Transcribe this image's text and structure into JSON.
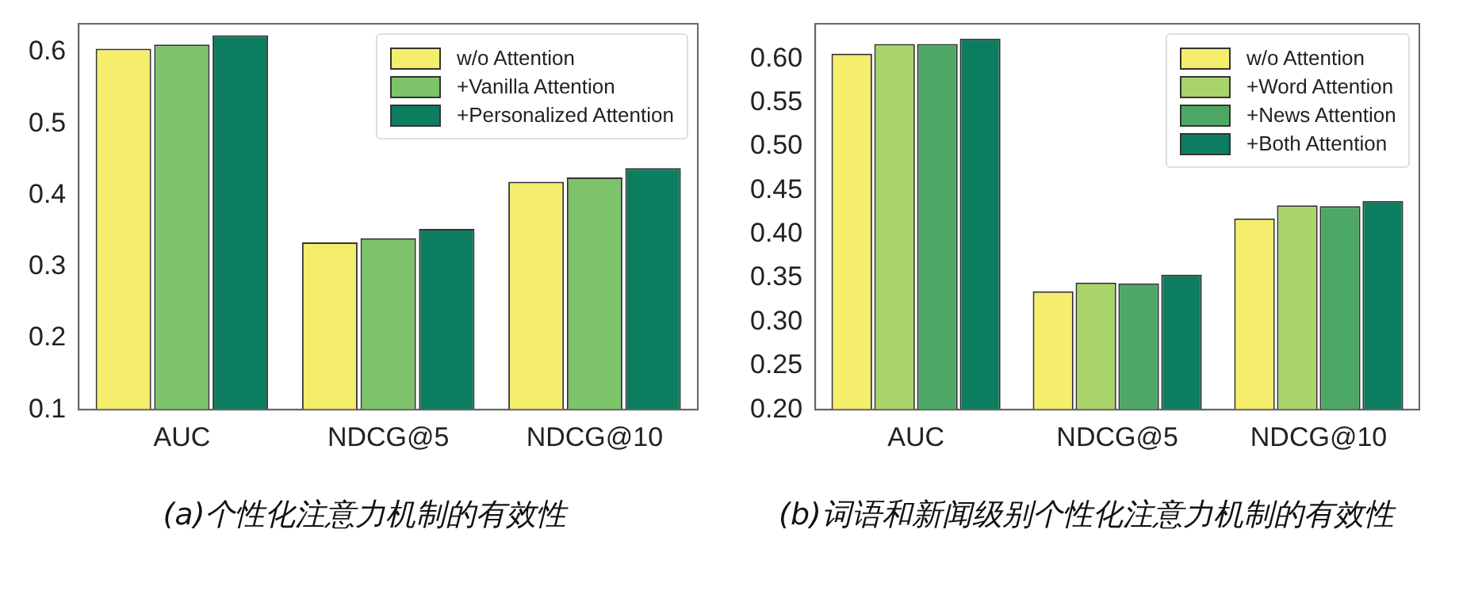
{
  "chart_data": [
    {
      "type": "bar",
      "categories": [
        "AUC",
        "NDCG@5",
        "NDCG@10"
      ],
      "series": [
        {
          "name": "w/o Attention",
          "color": "#f4ee6c",
          "values": [
            0.605,
            0.334,
            0.419
          ]
        },
        {
          "name": "+Vanilla Attention",
          "color": "#7cc36a",
          "values": [
            0.611,
            0.34,
            0.425
          ]
        },
        {
          "name": "+Personalized Attention",
          "color": "#0d7d5f",
          "values": [
            0.624,
            0.353,
            0.438
          ]
        }
      ],
      "ylim": [
        0.1,
        0.64
      ],
      "yticks": [
        {
          "value": 0.1,
          "label": "0.1"
        },
        {
          "value": 0.2,
          "label": "0.2"
        },
        {
          "value": 0.3,
          "label": "0.3"
        },
        {
          "value": 0.4,
          "label": "0.4"
        },
        {
          "value": 0.5,
          "label": "0.5"
        },
        {
          "value": 0.6,
          "label": "0.6"
        }
      ],
      "grid": false,
      "legend": "top right",
      "annotations": [
        "(a)个性化注意力机制的有效性"
      ]
    },
    {
      "type": "bar",
      "categories": [
        "AUC",
        "NDCG@5",
        "NDCG@10"
      ],
      "series": [
        {
          "name": "w/o Attention",
          "color": "#f4ee6c",
          "values": [
            0.606,
            0.335,
            0.418
          ]
        },
        {
          "name": "+Word Attention",
          "color": "#a9d46a",
          "values": [
            0.617,
            0.345,
            0.433
          ]
        },
        {
          "name": "+News Attention",
          "color": "#4ea865",
          "values": [
            0.617,
            0.344,
            0.432
          ]
        },
        {
          "name": "+Both Attention",
          "color": "#0d7d5f",
          "values": [
            0.623,
            0.354,
            0.438
          ]
        }
      ],
      "ylim": [
        0.2,
        0.64
      ],
      "yticks": [
        {
          "value": 0.2,
          "label": "0.20"
        },
        {
          "value": 0.25,
          "label": "0.25"
        },
        {
          "value": 0.3,
          "label": "0.30"
        },
        {
          "value": 0.35,
          "label": "0.35"
        },
        {
          "value": 0.4,
          "label": "0.40"
        },
        {
          "value": 0.45,
          "label": "0.45"
        },
        {
          "value": 0.5,
          "label": "0.50"
        },
        {
          "value": 0.55,
          "label": "0.55"
        },
        {
          "value": 0.6,
          "label": "0.60"
        }
      ],
      "grid": false,
      "legend": "top right",
      "annotations": [
        "(b)词语和新闻级别个性化注意力机制的有效性"
      ]
    }
  ]
}
